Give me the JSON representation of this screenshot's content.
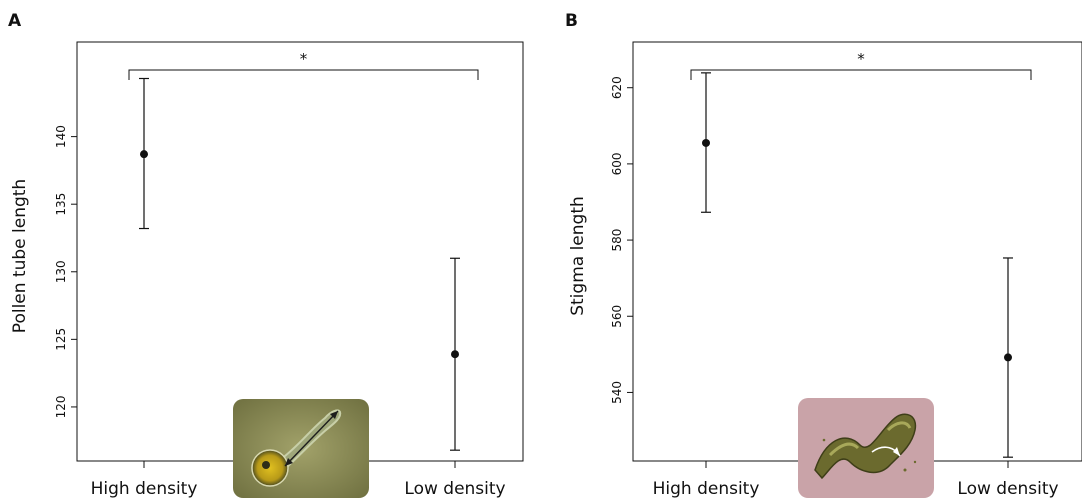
{
  "chart_data": [
    {
      "panel_label": "A",
      "type": "scatter",
      "categories": [
        "High density",
        "Low density"
      ],
      "means": [
        138.7,
        123.9
      ],
      "error_upper": [
        144.3,
        131.0
      ],
      "error_lower": [
        133.2,
        116.8
      ],
      "ylabel": "Pollen tube length",
      "yticks": [
        120,
        125,
        130,
        135,
        140
      ],
      "ylim": [
        116.0,
        147.0
      ],
      "significance": "*",
      "inset": "pollen-grain-photo",
      "grid": false
    },
    {
      "panel_label": "B",
      "type": "scatter",
      "categories": [
        "High density",
        "Low density"
      ],
      "means": [
        605.5,
        549.2
      ],
      "error_upper": [
        623.9,
        575.3
      ],
      "error_lower": [
        587.3,
        523.0
      ],
      "ylabel": "Stigma length",
      "yticks": [
        540,
        560,
        580,
        600,
        620
      ],
      "ylim": [
        522.0,
        632.0
      ],
      "significance": "*",
      "inset": "stigma-photo",
      "grid": false
    }
  ],
  "colors": {
    "ink": "#111111",
    "inset_a_bg": "#8a8a4a",
    "inset_b_bg": "#c9a3a8"
  }
}
